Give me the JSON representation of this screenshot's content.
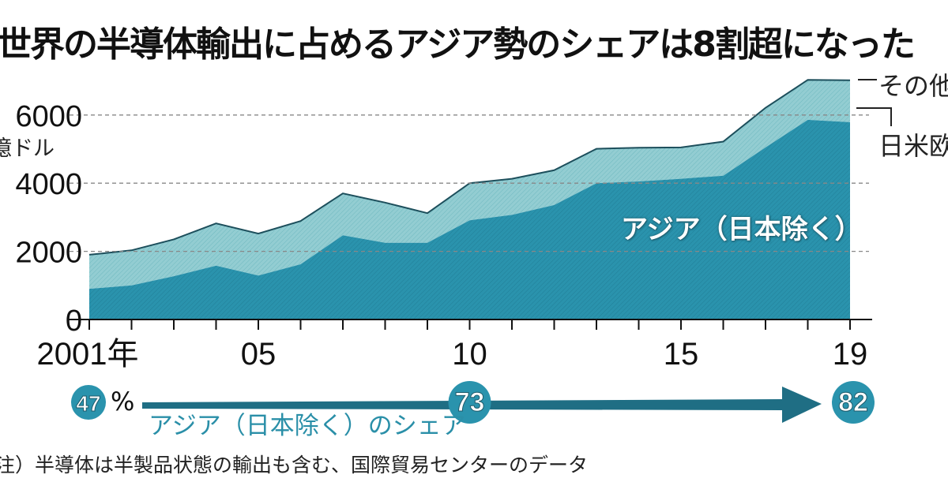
{
  "title": "世界の半導体輸出に占めるアジア勢のシェアは8割超になった",
  "note": "注）半導体は半製品状態の輸出も含む、国際貿易センターのデータ",
  "colors": {
    "asia": "#2a93ad",
    "other": "#93cdd2",
    "arrow": "#1f6e84",
    "grid": "#888888"
  },
  "chart_data": {
    "type": "area",
    "stacked": true,
    "ylabel": "億ドル",
    "ylim": [
      0,
      7000
    ],
    "yticks": [
      0,
      2000,
      4000,
      6000
    ],
    "ytick_labels": [
      "0",
      "2000",
      "4000",
      "6000"
    ],
    "grid": "horizontal dashed",
    "x": [
      2001,
      2002,
      2003,
      2004,
      2005,
      2006,
      2007,
      2008,
      2009,
      2010,
      2011,
      2012,
      2013,
      2014,
      2015,
      2016,
      2017,
      2018,
      2019
    ],
    "xtick_labels": [
      {
        "year": 2001,
        "label": "2001年"
      },
      {
        "year": 2005,
        "label": "05"
      },
      {
        "year": 2010,
        "label": "10"
      },
      {
        "year": 2015,
        "label": "15"
      },
      {
        "year": 2019,
        "label": "19"
      }
    ],
    "series": [
      {
        "name": "アジア（日本除く）",
        "values": [
          900,
          1000,
          1270,
          1580,
          1290,
          1620,
          2470,
          2250,
          2250,
          2910,
          3070,
          3360,
          4000,
          4050,
          4130,
          4220,
          5050,
          5860,
          5790
        ]
      },
      {
        "name": "日米欧・その他",
        "values": [
          1000,
          1030,
          1080,
          1240,
          1230,
          1270,
          1230,
          1180,
          870,
          1090,
          1060,
          1020,
          1010,
          990,
          920,
          1000,
          1160,
          1170,
          1230
        ]
      }
    ],
    "totals": [
      1900,
      2030,
      2350,
      2820,
      2520,
      2890,
      3700,
      3430,
      3120,
      4000,
      4130,
      4380,
      5010,
      5040,
      5050,
      5220,
      6210,
      7030,
      7020
    ],
    "legend": [
      "その他",
      "日米欧"
    ],
    "annotation": "アジア（日本除く）",
    "share": {
      "label": "アジア（日本除く）のシェア",
      "unit": "%",
      "points": [
        {
          "year": 2001,
          "value": "47"
        },
        {
          "year": 2010,
          "value": "73"
        },
        {
          "year": 2019,
          "value": "82"
        }
      ]
    }
  }
}
